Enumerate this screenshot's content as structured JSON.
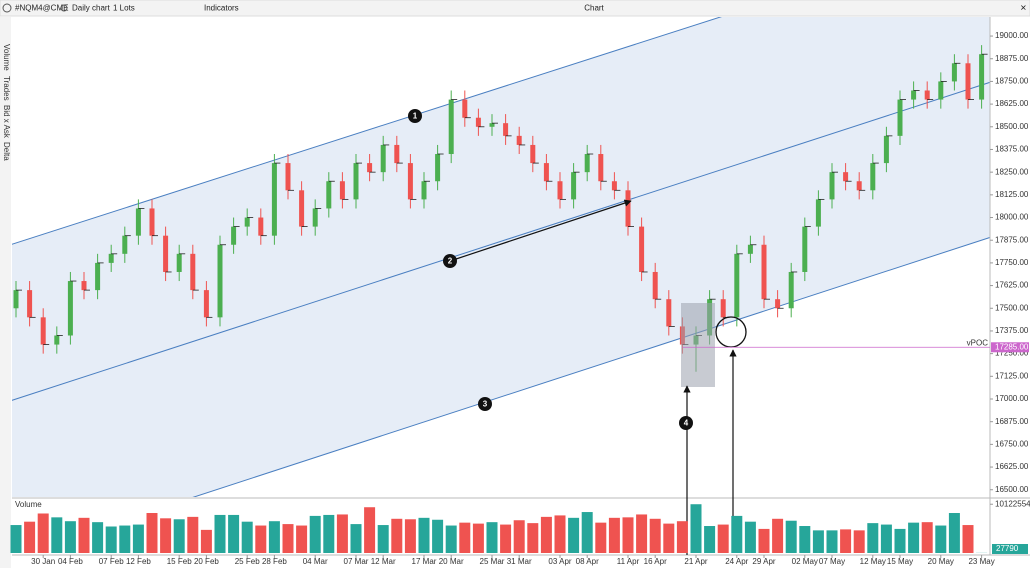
{
  "toolbar": {
    "symbol": "#NQM4@CME",
    "timeframe": "Daily chart",
    "lots": "1 Lots",
    "indicators": "Indicators",
    "window_title": "Chart"
  },
  "sidebar": [
    "Volume",
    "Trades",
    "Bid x Ask",
    "Delta"
  ],
  "chart_data": {
    "type": "candlestick",
    "categories": [
      null,
      null,
      "30 Jan",
      null,
      "04 Feb",
      null,
      null,
      "07 Feb",
      null,
      "12 Feb",
      null,
      null,
      "15 Feb",
      null,
      "20 Feb",
      null,
      null,
      "25 Feb",
      null,
      "28 Feb",
      null,
      null,
      "04 Mar",
      null,
      null,
      "07 Mar",
      null,
      "12 Mar",
      null,
      null,
      "17 Mar",
      null,
      "20 Mar",
      null,
      null,
      "25 Mar",
      null,
      "31 Mar",
      null,
      null,
      "03 Apr",
      null,
      "08 Apr",
      null,
      null,
      "11 Apr",
      null,
      "16 Apr",
      null,
      null,
      "21 Apr",
      null,
      null,
      "24 Apr",
      null,
      "29 Apr",
      null,
      null,
      "02 May",
      null,
      "07 May",
      null,
      null,
      "12 May",
      null,
      "15 May",
      null,
      null,
      "20 May",
      null,
      null,
      "23 May"
    ],
    "open": [
      17500,
      17600,
      17450,
      17300,
      17350,
      17650,
      17600,
      17750,
      17800,
      17900,
      18050,
      17900,
      17700,
      17800,
      17600,
      17450,
      17850,
      17950,
      18000,
      17900,
      18300,
      18150,
      17950,
      18050,
      18200,
      18100,
      18300,
      18250,
      18400,
      18300,
      18100,
      18200,
      18350,
      18650,
      18550,
      18500,
      18520,
      18450,
      18400,
      18300,
      18200,
      18100,
      18250,
      18350,
      18200,
      18150,
      17950,
      17700,
      17550,
      17400,
      17300,
      17350,
      17550,
      17450,
      17800,
      17850,
      17550,
      17500,
      17700,
      17950,
      18100,
      18250,
      18200,
      18150,
      18300,
      18450,
      18650,
      18700,
      18650,
      18750,
      18850,
      18650
    ],
    "high": [
      17650,
      17650,
      17500,
      17400,
      17700,
      17700,
      17800,
      17850,
      17950,
      18100,
      18100,
      17950,
      17850,
      17850,
      17650,
      17900,
      18000,
      18050,
      18050,
      18350,
      18350,
      18200,
      18100,
      18250,
      18250,
      18350,
      18350,
      18450,
      18450,
      18350,
      18250,
      18400,
      18700,
      18700,
      18600,
      18570,
      18570,
      18500,
      18450,
      18350,
      18250,
      18300,
      18400,
      18400,
      18250,
      18200,
      18000,
      17750,
      17600,
      17450,
      17400,
      17600,
      17600,
      17850,
      17900,
      17900,
      17600,
      17750,
      18000,
      18150,
      18300,
      18300,
      18250,
      18350,
      18500,
      18700,
      18750,
      18750,
      18800,
      18900,
      18900,
      18950
    ],
    "low": [
      17450,
      17400,
      17250,
      17250,
      17300,
      17550,
      17550,
      17700,
      17750,
      17850,
      17850,
      17650,
      17650,
      17550,
      17400,
      17400,
      17800,
      17900,
      17850,
      17850,
      18100,
      17900,
      17900,
      18000,
      18050,
      18050,
      18200,
      18200,
      18250,
      18050,
      18050,
      18150,
      18300,
      18500,
      18450,
      18450,
      18400,
      18350,
      18250,
      18150,
      18050,
      18050,
      18200,
      18150,
      18100,
      17900,
      17650,
      17500,
      17350,
      17250,
      17150,
      17300,
      17400,
      17400,
      17750,
      17500,
      17450,
      17450,
      17650,
      17900,
      18050,
      18150,
      18100,
      18100,
      18250,
      18400,
      18600,
      18600,
      18600,
      18700,
      18600,
      18600
    ],
    "close": [
      17600,
      17450,
      17300,
      17350,
      17650,
      17600,
      17750,
      17800,
      17900,
      18050,
      17900,
      17700,
      17800,
      17600,
      17450,
      17850,
      17950,
      18000,
      17900,
      18300,
      18150,
      17950,
      18050,
      18200,
      18100,
      18300,
      18250,
      18400,
      18300,
      18100,
      18200,
      18350,
      18650,
      18550,
      18500,
      18520,
      18450,
      18400,
      18300,
      18200,
      18100,
      18250,
      18350,
      18200,
      18150,
      17950,
      17700,
      17550,
      17400,
      17300,
      17350,
      17550,
      17450,
      17800,
      17850,
      17550,
      17500,
      17700,
      17950,
      18100,
      18250,
      18200,
      18150,
      18300,
      18450,
      18650,
      18700,
      18650,
      18750,
      18850,
      18650,
      18900
    ],
    "volume": [
      5800000,
      6500000,
      8200000,
      7400000,
      6600000,
      7300000,
      6400000,
      5500000,
      5700000,
      5900000,
      8300000,
      7200000,
      7000000,
      7500000,
      4800000,
      7900000,
      7900000,
      6500000,
      5700000,
      6600000,
      6000000,
      5700000,
      7700000,
      7900000,
      8000000,
      6000000,
      9500000,
      5800000,
      7100000,
      7000000,
      7300000,
      6900000,
      5700000,
      6300000,
      6100000,
      6400000,
      5900000,
      6800000,
      6200000,
      7500000,
      7800000,
      7300000,
      8500000,
      6300000,
      7300000,
      7400000,
      8000000,
      7100000,
      6100000,
      6600000,
      10122554,
      5600000,
      5900000,
      7700000,
      6500000,
      5000000,
      7100000,
      6700000,
      5600000,
      4700000,
      4700000,
      4900000,
      4700000,
      6200000,
      5900000,
      5000000,
      6300000,
      6400000,
      5700000,
      8300000,
      5800000,
      27790
    ],
    "up_color": "#4caf50",
    "down_color": "#ef5350",
    "volume_up_color": "#26a69a",
    "volume_down_color": "#ef5350",
    "ylim": [
      16460,
      19105
    ],
    "yticks": [
      {
        "value": 16500,
        "label": "16500.00"
      },
      {
        "value": 16625,
        "label": "16625.00"
      },
      {
        "value": 16750,
        "label": "16750.00"
      },
      {
        "value": 16875,
        "label": "16875.00"
      },
      {
        "value": 17000,
        "label": "17000.00"
      },
      {
        "value": 17125,
        "label": "17125.00"
      },
      {
        "value": 17250,
        "label": "17250.00"
      },
      {
        "value": 17375,
        "label": "17375.00"
      },
      {
        "value": 17500,
        "label": "17500.00"
      },
      {
        "value": 17625,
        "label": "17625.00"
      },
      {
        "value": 17750,
        "label": "17750.00"
      },
      {
        "value": 17875,
        "label": "17875.00"
      },
      {
        "value": 18000,
        "label": "18000.00"
      },
      {
        "value": 18125,
        "label": "18125.00"
      },
      {
        "value": 18250,
        "label": "18250.00"
      },
      {
        "value": 18375,
        "label": "18375.00"
      },
      {
        "value": 18500,
        "label": "18500.00"
      },
      {
        "value": 18625,
        "label": "18625.00"
      },
      {
        "value": 18750,
        "label": "18750.00"
      },
      {
        "value": 18875,
        "label": "18875.00"
      },
      {
        "value": 19000,
        "label": "19000.00"
      }
    ],
    "volume_title": "Volume",
    "volume_ylim": [
      0,
      11000000
    ],
    "volume_yticks": [
      10122554
    ],
    "channel_color": "#4a7fc1",
    "channel_fill": "#e6edf7",
    "channel_lines": [
      {
        "points": [
          [
            0,
            17860
          ],
          [
            52,
            19110
          ]
        ]
      },
      {
        "points": [
          [
            0,
            17000
          ],
          [
            71,
            18730
          ]
        ]
      },
      {
        "points": [
          [
            13.5,
            16470
          ],
          [
            71.6,
            17890
          ]
        ]
      }
    ],
    "vpoc": {
      "label": "vPOC",
      "price": {
        "value": 17285,
        "label": "17285.00"
      },
      "color": "#cc66cc"
    },
    "annotations": [
      "1",
      "2",
      "3",
      "4"
    ],
    "grid": false
  }
}
